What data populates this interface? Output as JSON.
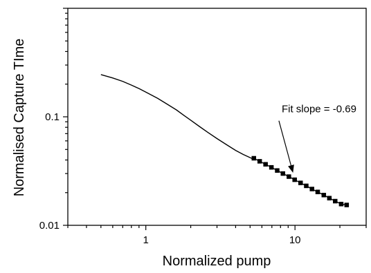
{
  "chart_data": {
    "type": "line",
    "xlabel": "Normalized pump",
    "ylabel": "Normalised Capture TIme",
    "x_scale": "log",
    "y_scale": "log",
    "xlim": [
      0.3,
      30
    ],
    "ylim": [
      0.01,
      1
    ],
    "x_ticks": [
      {
        "value": 1,
        "label": "1"
      },
      {
        "value": 10,
        "label": "10"
      }
    ],
    "y_ticks": [
      {
        "value": 0.01,
        "label": "0.01"
      },
      {
        "value": 0.1,
        "label": "0.1"
      }
    ],
    "grid": false,
    "series": [
      {
        "style": "line",
        "color": "#000000",
        "x": [
          0.5,
          0.6,
          0.7,
          0.8,
          0.9,
          1.0,
          1.2,
          1.4,
          1.6,
          1.8,
          2.0,
          2.3,
          2.6,
          3.0,
          3.5,
          4.0,
          4.5,
          5.2
        ],
        "y": [
          0.245,
          0.228,
          0.212,
          0.196,
          0.182,
          0.169,
          0.148,
          0.13,
          0.116,
          0.103,
          0.093,
          0.081,
          0.072,
          0.063,
          0.055,
          0.049,
          0.045,
          0.041
        ]
      },
      {
        "style": "square-markers",
        "color": "#000000",
        "x": [
          5.3,
          5.8,
          6.35,
          6.95,
          7.6,
          8.3,
          9.1,
          9.95,
          10.9,
          11.9,
          13.0,
          14.2,
          15.6,
          17.0,
          18.6,
          20.4,
          22.2
        ],
        "y": [
          0.0415,
          0.0389,
          0.0365,
          0.0342,
          0.032,
          0.03,
          0.0281,
          0.0263,
          0.0246,
          0.0231,
          0.0216,
          0.0203,
          0.019,
          0.0178,
          0.0167,
          0.0157,
          0.0154
        ]
      }
    ],
    "annotation": {
      "text": "Fit slope = -0.69",
      "text_at": [
        14.5,
        0.118
      ],
      "arrow_tail": [
        7.8,
        0.092
      ],
      "arrow_head": [
        9.7,
        0.0305
      ]
    }
  }
}
